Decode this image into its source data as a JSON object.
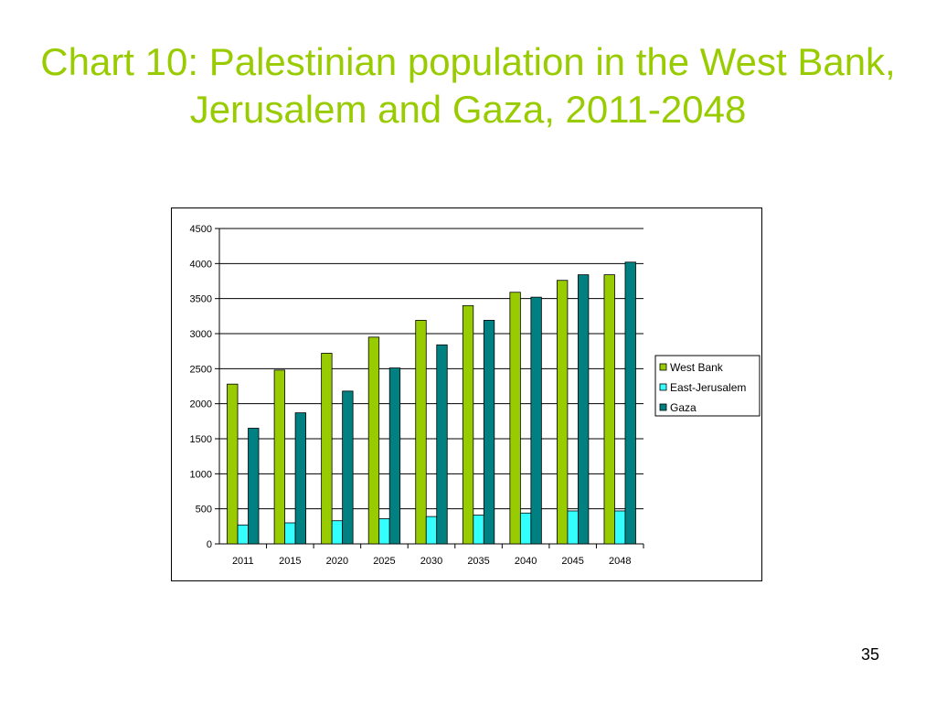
{
  "slide": {
    "title": "Chart 10: Palestinian population in the West Bank, Jerusalem and Gaza, 2011-2048",
    "page_number": "35"
  },
  "chart_data": {
    "type": "bar",
    "categories": [
      "2011",
      "2015",
      "2020",
      "2025",
      "2030",
      "2035",
      "2040",
      "2045",
      "2048"
    ],
    "series": [
      {
        "name": "West Bank",
        "color": "#99cc00",
        "values": [
          2280,
          2480,
          2720,
          2950,
          3190,
          3400,
          3590,
          3760,
          3840
        ]
      },
      {
        "name": "East-Jerusalem",
        "color": "#33ffff",
        "values": [
          270,
          300,
          330,
          360,
          390,
          410,
          440,
          470,
          470
        ]
      },
      {
        "name": "Gaza",
        "color": "#008080",
        "values": [
          1650,
          1870,
          2180,
          2510,
          2840,
          3190,
          3520,
          3840,
          4020
        ]
      }
    ],
    "ylim": [
      0,
      4500
    ],
    "yticks": [
      0,
      500,
      1000,
      1500,
      2000,
      2500,
      3000,
      3500,
      4000,
      4500
    ],
    "grid": true,
    "legend_position": "right"
  }
}
